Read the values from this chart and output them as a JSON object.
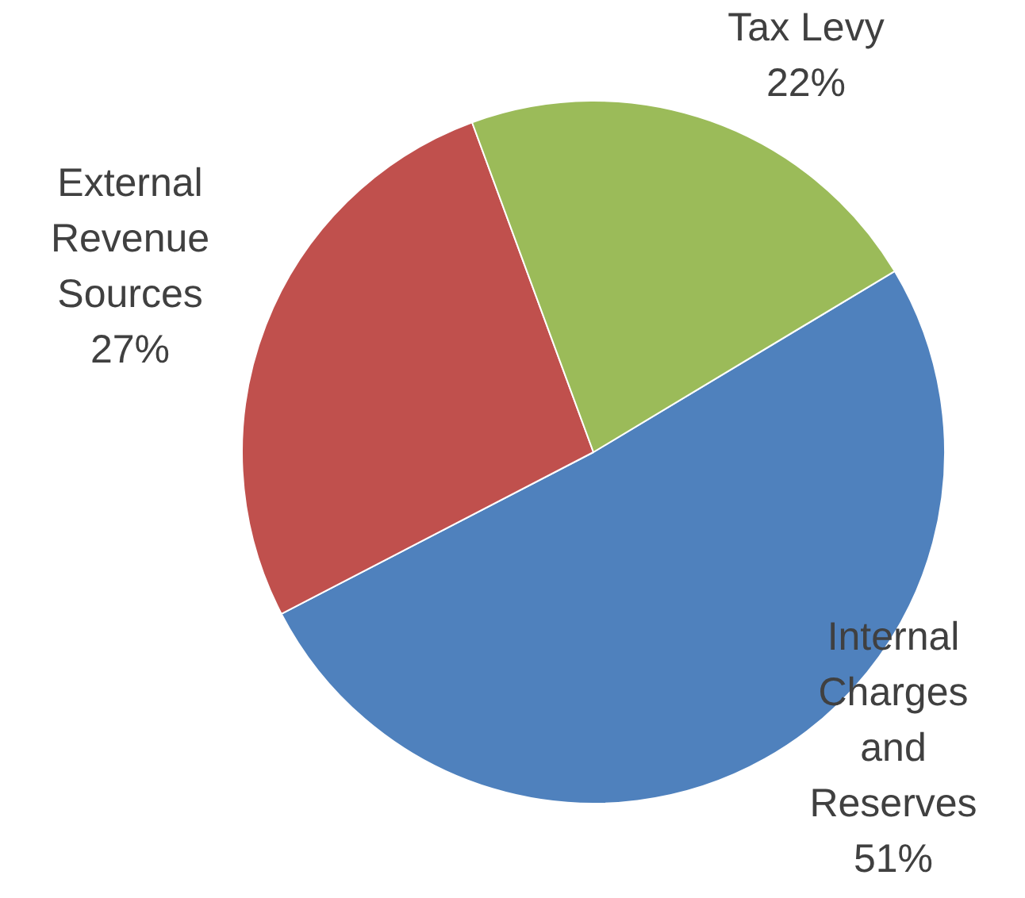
{
  "chart_data": {
    "type": "pie",
    "categories": [
      "Internal Charges and Reserves",
      "External Revenue Sources",
      "Tax Levy"
    ],
    "values": [
      51,
      27,
      22
    ],
    "colors": [
      "#4f81bd",
      "#c0504d",
      "#9bbb59"
    ],
    "value_labels": [
      "51%",
      "27%",
      "22%"
    ],
    "legend": false
  }
}
